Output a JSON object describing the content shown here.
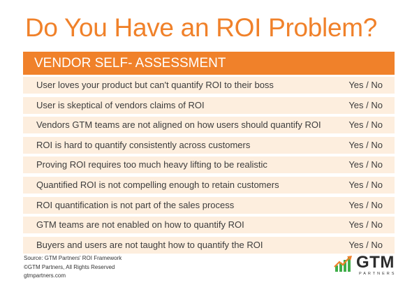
{
  "title": "Do You Have an ROI Problem?",
  "header": "VENDOR SELF- ASSESSMENT",
  "rows": [
    {
      "question": "User loves your product but can't quantify ROI to their boss",
      "answer": "Yes / No"
    },
    {
      "question": "User is skeptical of vendors claims of ROI",
      "answer": "Yes / No"
    },
    {
      "question": "Vendors GTM teams are not aligned on how users should quantify ROI",
      "answer": "Yes / No"
    },
    {
      "question": "ROI is hard to quantify consistently across customers",
      "answer": "Yes / No"
    },
    {
      "question": "Proving ROI requires too much heavy lifting to be realistic",
      "answer": "Yes / No"
    },
    {
      "question": "Quantified ROI is not compelling enough to retain customers",
      "answer": "Yes / No"
    },
    {
      "question": "ROI quantification is not part of the sales process",
      "answer": "Yes / No"
    },
    {
      "question": "GTM teams are not enabled on how to quantify ROI",
      "answer": "Yes / No"
    },
    {
      "question": "Buyers and users are not taught how to quantify the ROI",
      "answer": "Yes / No"
    }
  ],
  "footer": {
    "source": "Source: GTM Partners' ROI Framework",
    "copyright": "©GTM Partners, All Rights Reserved",
    "website": "gtmpartners.com"
  },
  "logo": {
    "name": "GTM",
    "tagline": "PARTNERS",
    "icon": "bar-chart-arrow-icon"
  },
  "colors": {
    "accent": "#f0812a",
    "row_background": "#fdeede",
    "logo_green": "#3fae49",
    "logo_orange": "#f0812a"
  }
}
